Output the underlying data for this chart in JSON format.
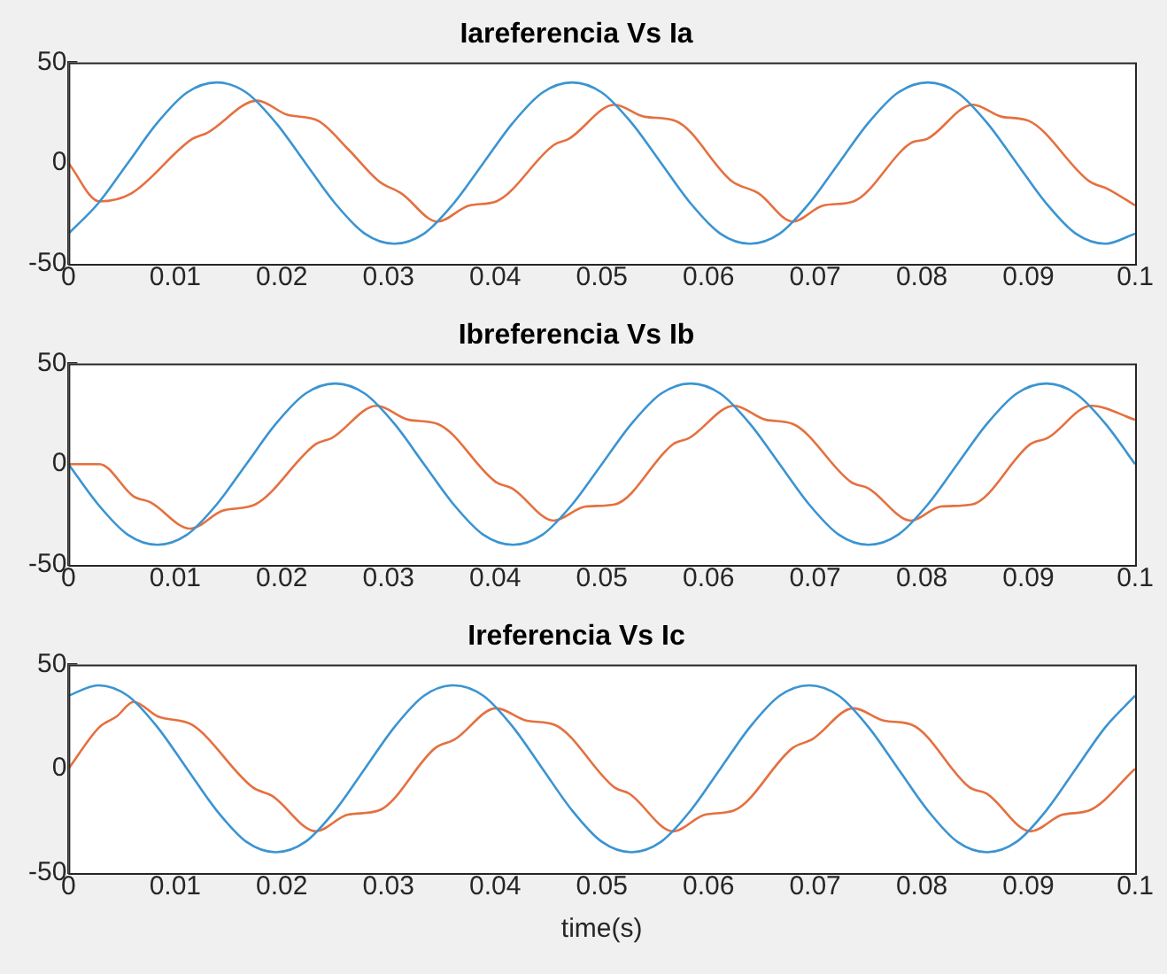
{
  "chart_data": [
    {
      "type": "line",
      "title": "Iareferencia Vs Ia",
      "xlim": [
        0,
        0.1
      ],
      "xticks": [
        0,
        0.01,
        0.02,
        0.03,
        0.04,
        0.05,
        0.06,
        0.07,
        0.08,
        0.09,
        0.1
      ],
      "ylim": [
        -50,
        50
      ],
      "yticks": [
        -50,
        0,
        50
      ],
      "series": [
        {
          "color": "#3b94d2",
          "x": [
            0,
            0.00278,
            0.00556,
            0.00833,
            0.01111,
            0.01389,
            0.01667,
            0.01944,
            0.02222,
            0.025,
            0.02778,
            0.03056,
            0.03333,
            0.03611,
            0.03889,
            0.04167,
            0.04444,
            0.04722,
            0.05,
            0.05278,
            0.05556,
            0.05833,
            0.06111,
            0.06389,
            0.06667,
            0.06944,
            0.07222,
            0.075,
            0.07778,
            0.08056,
            0.08333,
            0.08611,
            0.08889,
            0.09167,
            0.09444,
            0.09722,
            0.1
          ],
          "values": [
            -35,
            -20,
            0,
            20,
            35,
            40,
            35,
            20,
            0,
            -20,
            -35,
            -40,
            -35,
            -20,
            0,
            20,
            35,
            40,
            35,
            20,
            0,
            -20,
            -35,
            -40,
            -35,
            -20,
            0,
            20,
            35,
            40,
            35,
            20,
            0,
            -20,
            -35,
            -40,
            -35
          ]
        },
        {
          "color": "#e5703f",
          "x": [
            0,
            0.0029,
            0.0059,
            0.0116,
            0.013,
            0.0177,
            0.0205,
            0.0234,
            0.0262,
            0.0291,
            0.0312,
            0.0346,
            0.0376,
            0.0401,
            0.0455,
            0.0469,
            0.0512,
            0.054,
            0.0569,
            0.0622,
            0.0647,
            0.0679,
            0.0708,
            0.0736,
            0.079,
            0.0805,
            0.0848,
            0.0875,
            0.09,
            0.0957,
            0.0975,
            0.1
          ],
          "values": [
            0,
            -19,
            -15,
            12,
            15,
            31,
            24,
            21,
            7,
            -9,
            -15,
            -29,
            -21,
            -19,
            9,
            12,
            29,
            23,
            21,
            -9,
            -15,
            -29,
            -21,
            -19,
            10,
            12,
            29,
            23,
            21,
            -9,
            -13,
            -21
          ]
        }
      ]
    },
    {
      "type": "line",
      "title": "Ibreferencia Vs Ib",
      "xlim": [
        0,
        0.1
      ],
      "xticks": [
        0,
        0.01,
        0.02,
        0.03,
        0.04,
        0.05,
        0.06,
        0.07,
        0.08,
        0.09,
        0.1
      ],
      "ylim": [
        -50,
        50
      ],
      "yticks": [
        -50,
        0,
        50
      ],
      "series": [
        {
          "color": "#3b94d2",
          "x": [
            0,
            0.00278,
            0.00556,
            0.00833,
            0.01111,
            0.01389,
            0.01667,
            0.01944,
            0.02222,
            0.025,
            0.02778,
            0.03056,
            0.03333,
            0.03611,
            0.03889,
            0.04167,
            0.04444,
            0.04722,
            0.05,
            0.05278,
            0.05556,
            0.05833,
            0.06111,
            0.06389,
            0.06667,
            0.06944,
            0.07222,
            0.075,
            0.07778,
            0.08056,
            0.08333,
            0.08611,
            0.08889,
            0.09167,
            0.09444,
            0.09722,
            0.1
          ],
          "values": [
            0,
            -20,
            -35,
            -40,
            -35,
            -20,
            0,
            20,
            35,
            40,
            35,
            20,
            0,
            -20,
            -35,
            -40,
            -35,
            -20,
            0,
            20,
            35,
            40,
            35,
            20,
            0,
            -20,
            -35,
            -40,
            -35,
            -20,
            0,
            20,
            35,
            40,
            35,
            20,
            0
          ]
        },
        {
          "color": "#e5703f",
          "x": [
            0,
            0.0029,
            0.0061,
            0.0077,
            0.0114,
            0.0145,
            0.0175,
            0.0232,
            0.0247,
            0.0289,
            0.0319,
            0.0346,
            0.0401,
            0.0416,
            0.0455,
            0.0485,
            0.0512,
            0.0567,
            0.0582,
            0.0624,
            0.0654,
            0.0679,
            0.0734,
            0.075,
            0.079,
            0.0818,
            0.0847,
            0.0902,
            0.0918,
            0.0959,
            0.1
          ],
          "values": [
            0,
            0,
            -16,
            -19,
            -32,
            -23,
            -20,
            10,
            13,
            29,
            22,
            20,
            -9,
            -12,
            -28,
            -21,
            -20,
            10,
            13,
            29,
            22,
            20,
            -9,
            -12,
            -28,
            -21,
            -20,
            10,
            13,
            29,
            22
          ]
        }
      ]
    },
    {
      "type": "line",
      "title": "Ireferencia Vs Ic",
      "xlabel": "time(s)",
      "xlim": [
        0,
        0.1
      ],
      "xticks": [
        0,
        0.01,
        0.02,
        0.03,
        0.04,
        0.05,
        0.06,
        0.07,
        0.08,
        0.09,
        0.1
      ],
      "ylim": [
        -50,
        50
      ],
      "yticks": [
        -50,
        0,
        50
      ],
      "series": [
        {
          "color": "#3b94d2",
          "x": [
            0,
            0.00278,
            0.00556,
            0.00833,
            0.01111,
            0.01389,
            0.01667,
            0.01944,
            0.02222,
            0.025,
            0.02778,
            0.03056,
            0.03333,
            0.03611,
            0.03889,
            0.04167,
            0.04444,
            0.04722,
            0.05,
            0.05278,
            0.05556,
            0.05833,
            0.06111,
            0.06389,
            0.06667,
            0.06944,
            0.07222,
            0.075,
            0.07778,
            0.08056,
            0.08333,
            0.08611,
            0.08889,
            0.09167,
            0.09444,
            0.09722,
            0.1
          ],
          "values": [
            35,
            40,
            35,
            20,
            0,
            -20,
            -35,
            -40,
            -35,
            -20,
            0,
            20,
            35,
            40,
            35,
            20,
            0,
            -20,
            -35,
            -40,
            -35,
            -20,
            0,
            20,
            35,
            40,
            35,
            20,
            0,
            -20,
            -35,
            -40,
            -35,
            -20,
            0,
            20,
            35
          ]
        },
        {
          "color": "#e5703f",
          "x": [
            0,
            0.0029,
            0.0045,
            0.0061,
            0.0084,
            0.0116,
            0.0173,
            0.0191,
            0.0232,
            0.0262,
            0.0291,
            0.0344,
            0.0362,
            0.0401,
            0.043,
            0.0456,
            0.0512,
            0.0526,
            0.0567,
            0.0597,
            0.0624,
            0.0679,
            0.0697,
            0.0736,
            0.0765,
            0.0791,
            0.0845,
            0.0861,
            0.0902,
            0.0932,
            0.0957,
            0.1
          ],
          "values": [
            0,
            20,
            25,
            32,
            25,
            21,
            -9,
            -13,
            -30,
            -22,
            -20,
            10,
            14,
            29,
            23,
            21,
            -9,
            -12,
            -30,
            -22,
            -20,
            10,
            14,
            29,
            23,
            21,
            -9,
            -12,
            -30,
            -22,
            -20,
            0
          ]
        }
      ]
    }
  ]
}
